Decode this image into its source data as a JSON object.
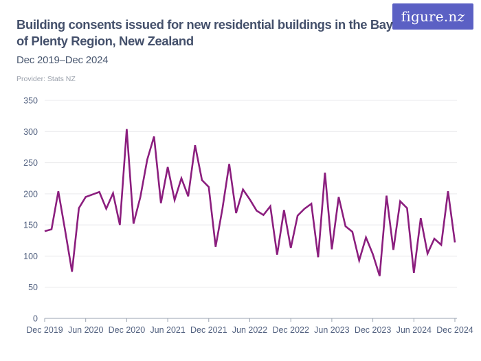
{
  "header": {
    "title": "Building consents issued for new residential buildings in the Bay of Plenty Region, New Zealand",
    "subtitle": "Dec 2019–Dec 2024",
    "provider": "Provider: Stats NZ",
    "logo_text_main": "figure.n",
    "logo_text_z": "z"
  },
  "colors": {
    "line": "#8b1e7e",
    "logo_background": "#5b60c4",
    "logo_text": "#ffffff",
    "title_text": "#44506b",
    "subtitle_text": "#4a5870",
    "provider_text": "#9ba1ac",
    "axis_label_text": "#51607f",
    "gridline": "#e9e9ec",
    "axis_line": "#9aa3b0",
    "background": "#ffffff"
  },
  "chart_data": {
    "type": "line",
    "title": "Building consents issued for new residential buildings in the Bay of Plenty Region, New Zealand",
    "subtitle": "Dec 2019–Dec 2024",
    "xlabel": "",
    "ylabel": "",
    "ylim": [
      0,
      350
    ],
    "y_ticks": [
      0,
      50,
      100,
      150,
      200,
      250,
      300,
      350
    ],
    "grid": "horizontal",
    "legend": "none",
    "series_name": "Building consents issued",
    "x": [
      "Dec 2019",
      "Jan 2020",
      "Feb 2020",
      "Mar 2020",
      "Apr 2020",
      "May 2020",
      "Jun 2020",
      "Jul 2020",
      "Aug 2020",
      "Sep 2020",
      "Oct 2020",
      "Nov 2020",
      "Dec 2020",
      "Jan 2021",
      "Feb 2021",
      "Mar 2021",
      "Apr 2021",
      "May 2021",
      "Jun 2021",
      "Jul 2021",
      "Aug 2021",
      "Sep 2021",
      "Oct 2021",
      "Nov 2021",
      "Dec 2021",
      "Jan 2022",
      "Feb 2022",
      "Mar 2022",
      "Apr 2022",
      "May 2022",
      "Jun 2022",
      "Jul 2022",
      "Aug 2022",
      "Sep 2022",
      "Oct 2022",
      "Nov 2022",
      "Dec 2022",
      "Jan 2023",
      "Feb 2023",
      "Mar 2023",
      "Apr 2023",
      "May 2023",
      "Jun 2023",
      "Jul 2023",
      "Aug 2023",
      "Sep 2023",
      "Oct 2023",
      "Nov 2023",
      "Dec 2023",
      "Jan 2024",
      "Feb 2024",
      "Mar 2024",
      "Apr 2024",
      "May 2024",
      "Jun 2024",
      "Jul 2024",
      "Aug 2024",
      "Sep 2024",
      "Oct 2024",
      "Nov 2024",
      "Dec 2024"
    ],
    "values": [
      140,
      143,
      204,
      141,
      75,
      177,
      195,
      199,
      203,
      176,
      201,
      150,
      304,
      152,
      195,
      255,
      292,
      185,
      243,
      190,
      225,
      196,
      278,
      222,
      211,
      115,
      176,
      248,
      169,
      207,
      191,
      173,
      166,
      180,
      102,
      174,
      113,
      165,
      176,
      184,
      98,
      234,
      111,
      195,
      148,
      139,
      93,
      130,
      103,
      68,
      197,
      110,
      188,
      177,
      73,
      161,
      104,
      128,
      118,
      204,
      122
    ],
    "x_tick_labels": [
      "Dec 2019",
      "Jun 2020",
      "Dec 2020",
      "Jun 2021",
      "Dec 2021",
      "Jun 2022",
      "Dec 2022",
      "Jun 2023",
      "Dec 2023",
      "Jun 2024",
      "Dec 2024"
    ]
  }
}
